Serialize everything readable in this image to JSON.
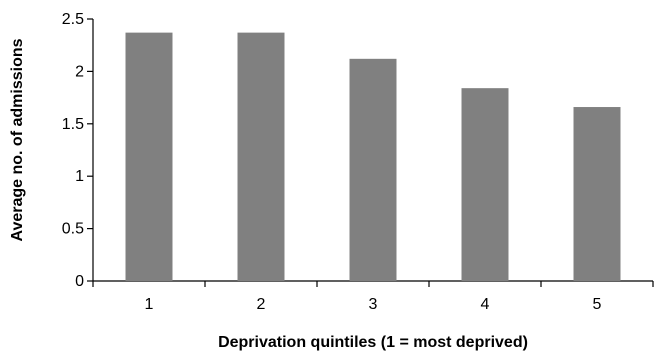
{
  "chart_data": {
    "type": "bar",
    "title": "",
    "xlabel": "Deprivation quintiles (1 = most deprived)",
    "ylabel": "Average no. of admissions",
    "categories": [
      "1",
      "2",
      "3",
      "4",
      "5"
    ],
    "values": [
      2.37,
      2.37,
      2.12,
      1.84,
      1.66
    ],
    "ylim": [
      0,
      2.5
    ],
    "yticks": [
      "0",
      "0.5",
      "1",
      "1.5",
      "2",
      "2.5"
    ],
    "grid": false,
    "legend": "none",
    "bar_color": "#808080"
  }
}
